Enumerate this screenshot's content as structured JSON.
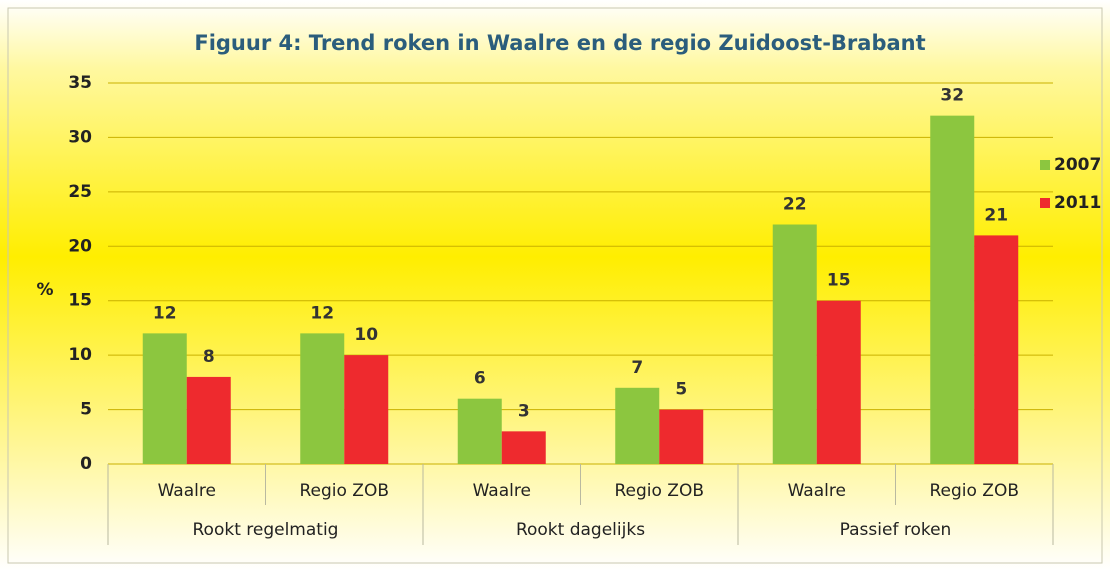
{
  "chart_data": {
    "type": "bar",
    "title": "Figuur 4: Trend roken in Waalre en de regio Zuidoost-Brabant",
    "y_label": "%",
    "categories": [
      "Waalre",
      "Regio ZOB",
      "Waalre",
      "Regio ZOB",
      "Waalre",
      "Regio ZOB"
    ],
    "groups": [
      "Rookt regelmatig",
      "Rookt dagelijks",
      "Passief roken"
    ],
    "series": [
      {
        "name": "2007",
        "color": "#8cc63f",
        "values": [
          12,
          12,
          6,
          7,
          22,
          32
        ]
      },
      {
        "name": "2011",
        "color": "#ee2a2e",
        "values": [
          8,
          10,
          3,
          5,
          15,
          21
        ]
      }
    ],
    "ylim": [
      0,
      35
    ],
    "yticks": [
      0,
      5,
      10,
      15,
      20,
      25,
      30,
      35
    ],
    "grid": true,
    "legend": "right"
  }
}
